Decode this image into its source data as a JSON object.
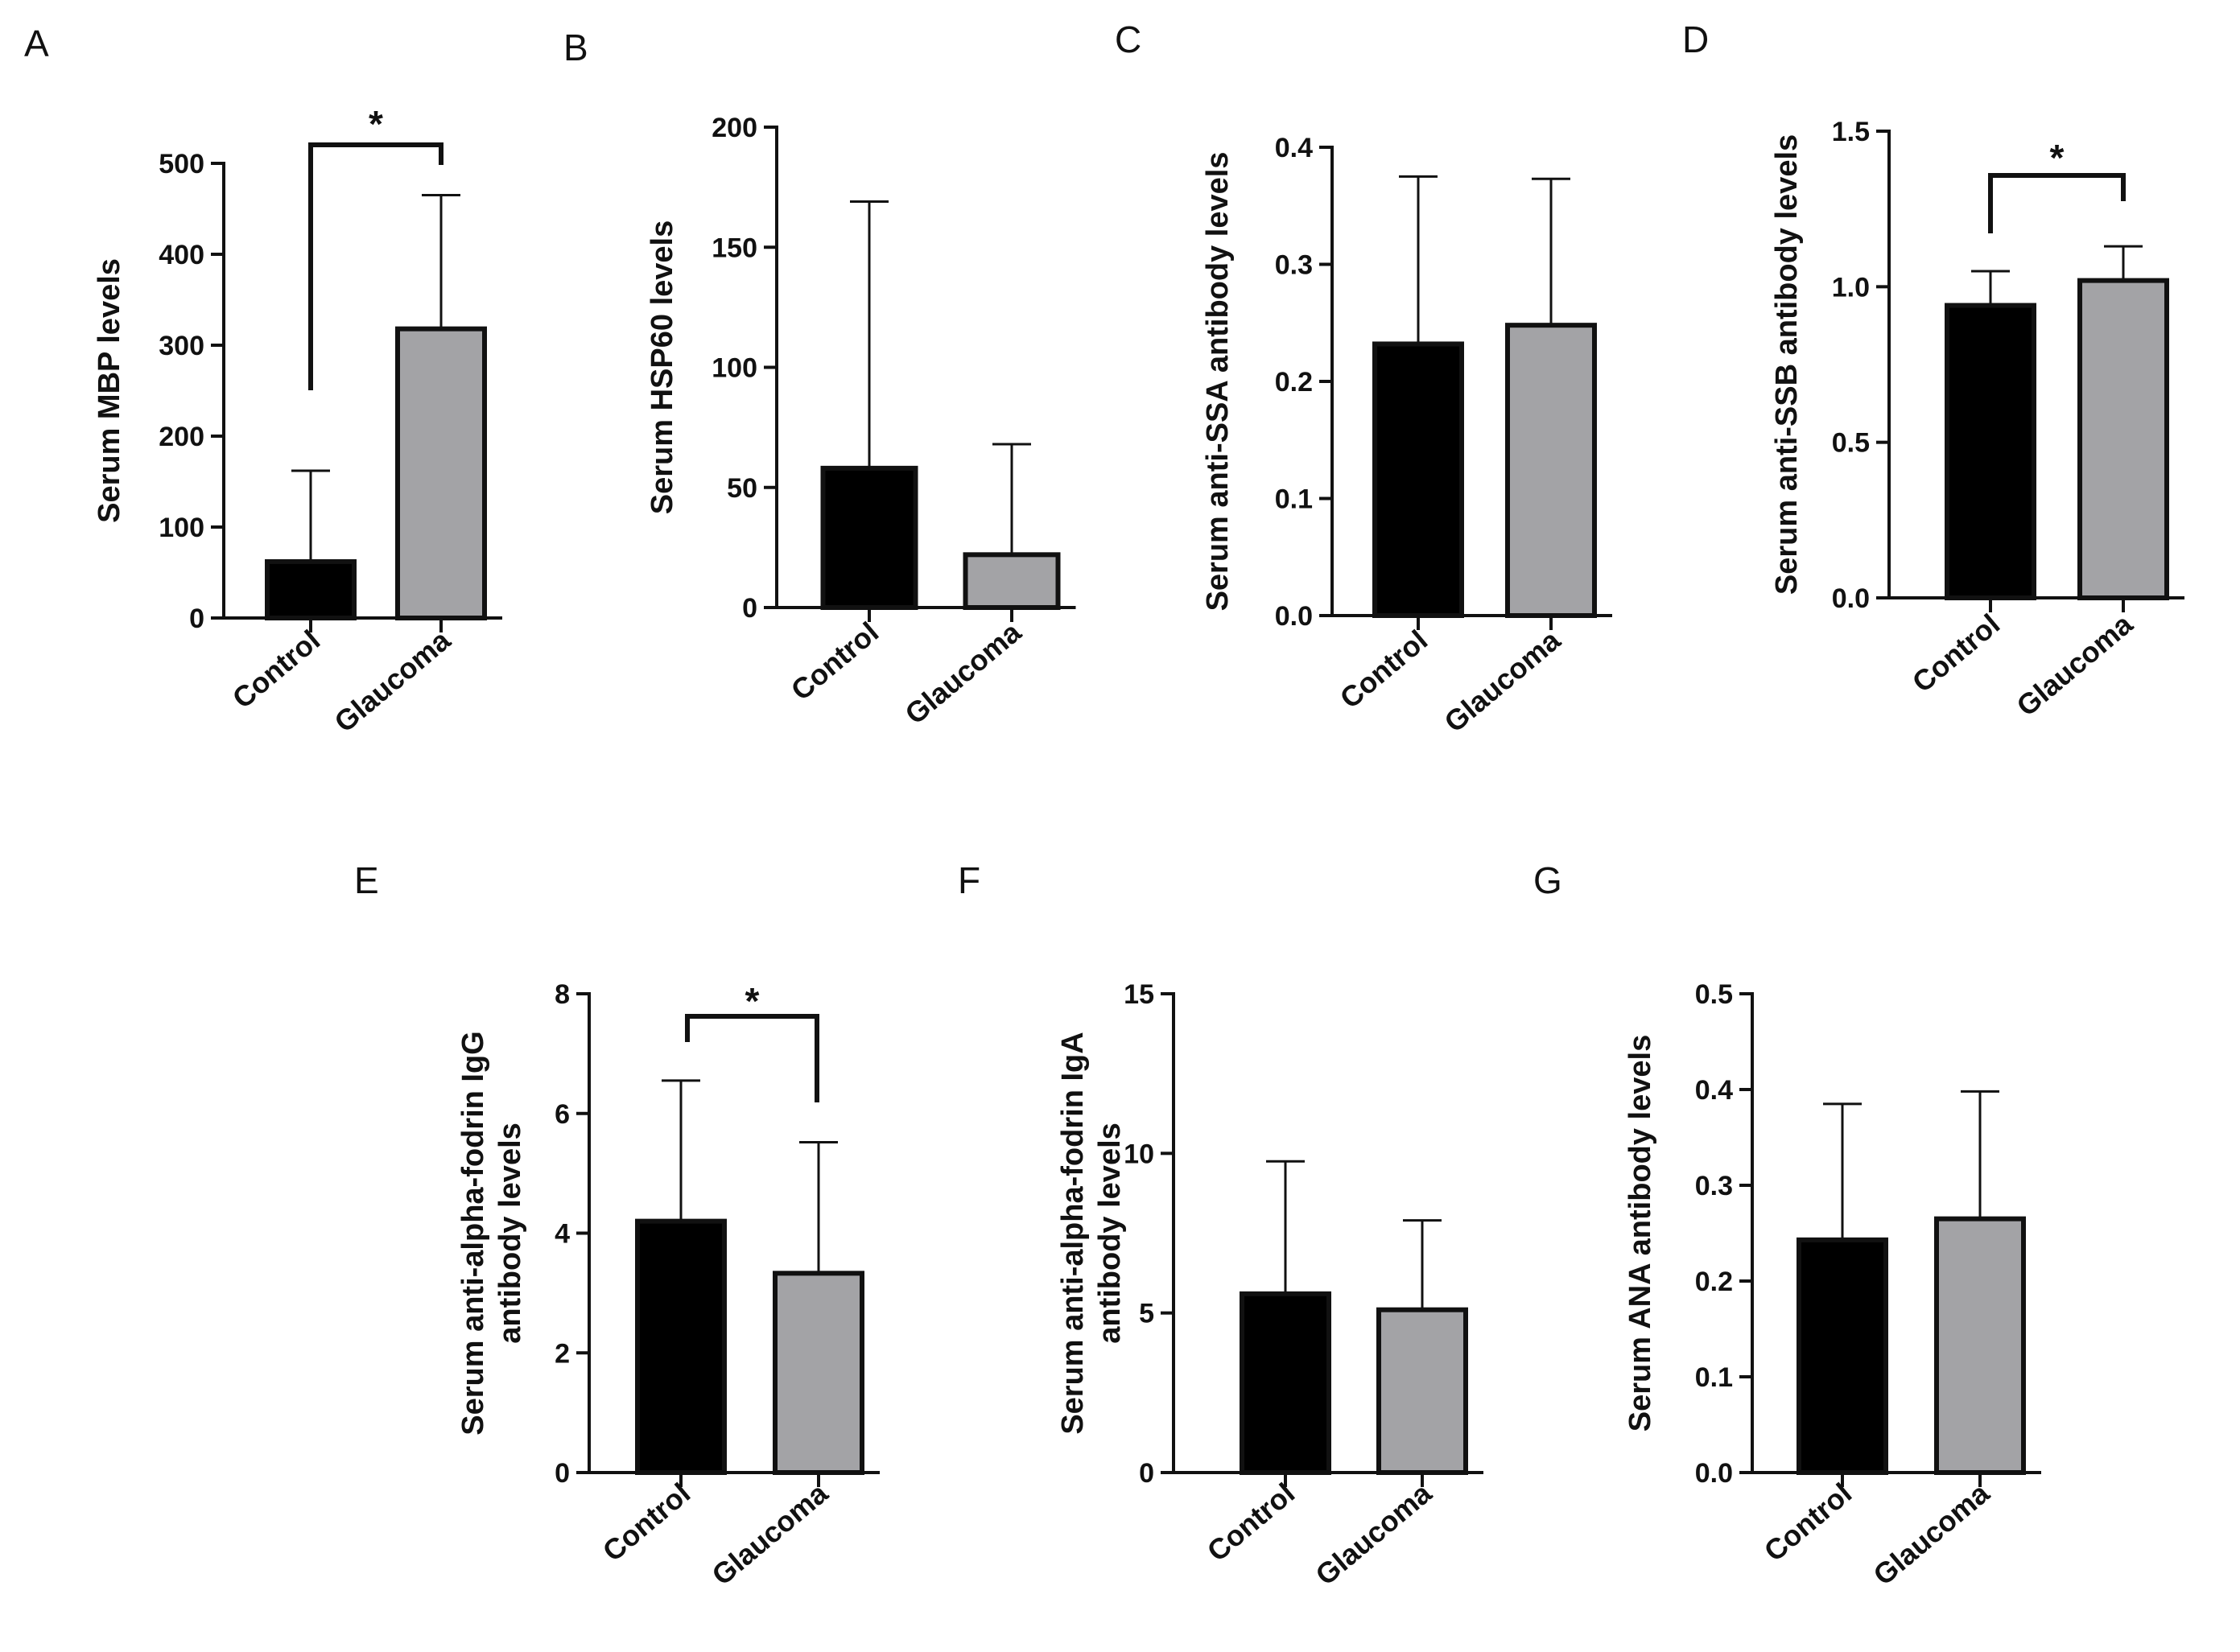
{
  "figure": {
    "colors": {
      "control": "#000000",
      "glaucoma": "#a3a3a6",
      "ink": "#111111"
    }
  },
  "chart_data": [
    {
      "panel": "A",
      "type": "bar",
      "categories": [
        "Control",
        "Glaucoma"
      ],
      "values": [
        62,
        318
      ],
      "error_upper": [
        162,
        465
      ],
      "ylabel": "Serum MBP levels",
      "ylim": [
        0,
        500
      ],
      "yticks": [
        "0",
        "100",
        "200",
        "300",
        "400",
        "500"
      ],
      "significance": "*"
    },
    {
      "panel": "B",
      "type": "bar",
      "categories": [
        "Control",
        "Glaucoma"
      ],
      "values": [
        58,
        22
      ],
      "error_upper": [
        169,
        68
      ],
      "ylabel": "Serum HSP60 levels",
      "ylim": [
        0,
        200
      ],
      "yticks": [
        "0",
        "50",
        "100",
        "150",
        "200"
      ],
      "significance": ""
    },
    {
      "panel": "C",
      "type": "bar",
      "categories": [
        "Control",
        "Glaucoma"
      ],
      "values": [
        0.232,
        0.248
      ],
      "error_upper": [
        0.375,
        0.373
      ],
      "ylabel": "Serum anti-SSA antibody levels",
      "ylim": [
        0,
        0.4
      ],
      "yticks": [
        "0.0",
        "0.1",
        "0.2",
        "0.3",
        "0.4"
      ],
      "significance": ""
    },
    {
      "panel": "D",
      "type": "bar",
      "categories": [
        "Control",
        "Glaucoma"
      ],
      "values": [
        0.94,
        1.02
      ],
      "error_upper": [
        1.05,
        1.13
      ],
      "ylabel": "Serum anti-SSB antibody levels",
      "ylim": [
        0,
        1.5
      ],
      "yticks": [
        "0.0",
        "0.5",
        "1.0",
        "1.5"
      ],
      "significance": "*"
    },
    {
      "panel": "E",
      "type": "bar",
      "categories": [
        "Control",
        "Glaucoma"
      ],
      "values": [
        4.2,
        3.33
      ],
      "error_upper": [
        6.55,
        5.52
      ],
      "ylabel": [
        "Serum anti-alpha-fodrin IgG",
        "antibody levels"
      ],
      "ylim": [
        0,
        8
      ],
      "yticks": [
        "0",
        "2",
        "4",
        "6",
        "8"
      ],
      "significance": "*"
    },
    {
      "panel": "F",
      "type": "bar",
      "categories": [
        "Control",
        "Glaucoma"
      ],
      "values": [
        5.6,
        5.1
      ],
      "error_upper": [
        9.75,
        7.9
      ],
      "ylabel": [
        "Serum anti-alpha-fodrin IgA",
        "antibody levels"
      ],
      "ylim": [
        0,
        15
      ],
      "yticks": [
        "0",
        "5",
        "10",
        "15"
      ],
      "significance": ""
    },
    {
      "panel": "G",
      "type": "bar",
      "categories": [
        "Control",
        "Glaucoma"
      ],
      "values": [
        0.243,
        0.265
      ],
      "error_upper": [
        0.385,
        0.398
      ],
      "ylabel": "Serum  ANA antibody levels",
      "ylim": [
        0,
        0.5
      ],
      "yticks": [
        "0.0",
        "0.1",
        "0.2",
        "0.3",
        "0.4",
        "0.5"
      ],
      "significance": ""
    }
  ]
}
